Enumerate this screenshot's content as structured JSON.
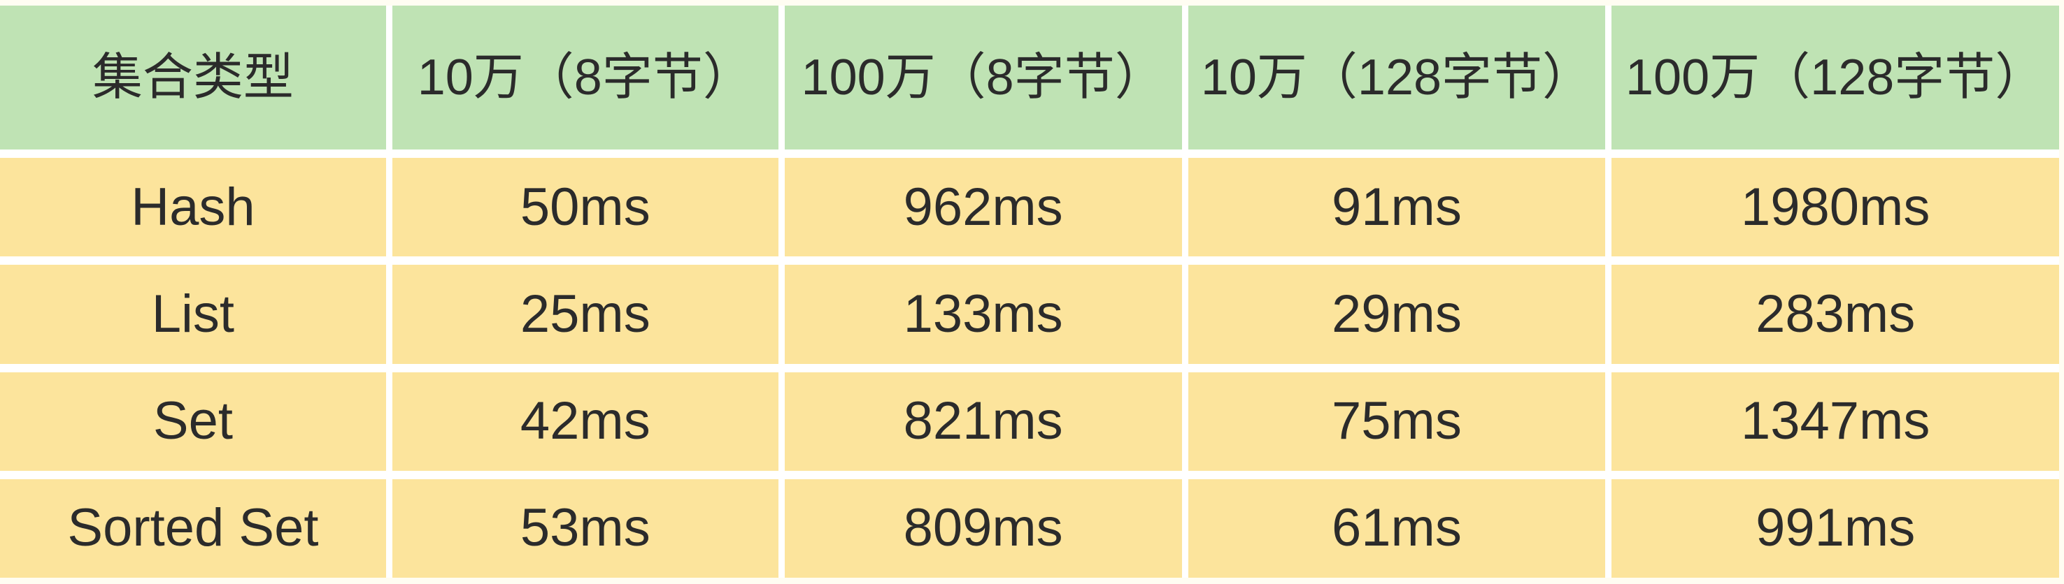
{
  "chart_data": {
    "type": "table",
    "columns": [
      "集合类型",
      "10万（8字节）",
      "100万（8字节）",
      "10万（128字节）",
      "100万（128字节）"
    ],
    "rows": [
      [
        "Hash",
        "50ms",
        "962ms",
        "91ms",
        "1980ms"
      ],
      [
        "List",
        "25ms",
        "133ms",
        "29ms",
        "283ms"
      ],
      [
        "Set",
        "42ms",
        "821ms",
        "75ms",
        "1347ms"
      ],
      [
        "Sorted Set",
        "53ms",
        "809ms",
        "61ms",
        "991ms"
      ]
    ]
  },
  "colors": {
    "header_bg": "#bfe3b4",
    "row_bg": "#fce49c",
    "text": "#2b2b2b",
    "page_bg": "#fffdf2",
    "divider": "#ffffff"
  }
}
